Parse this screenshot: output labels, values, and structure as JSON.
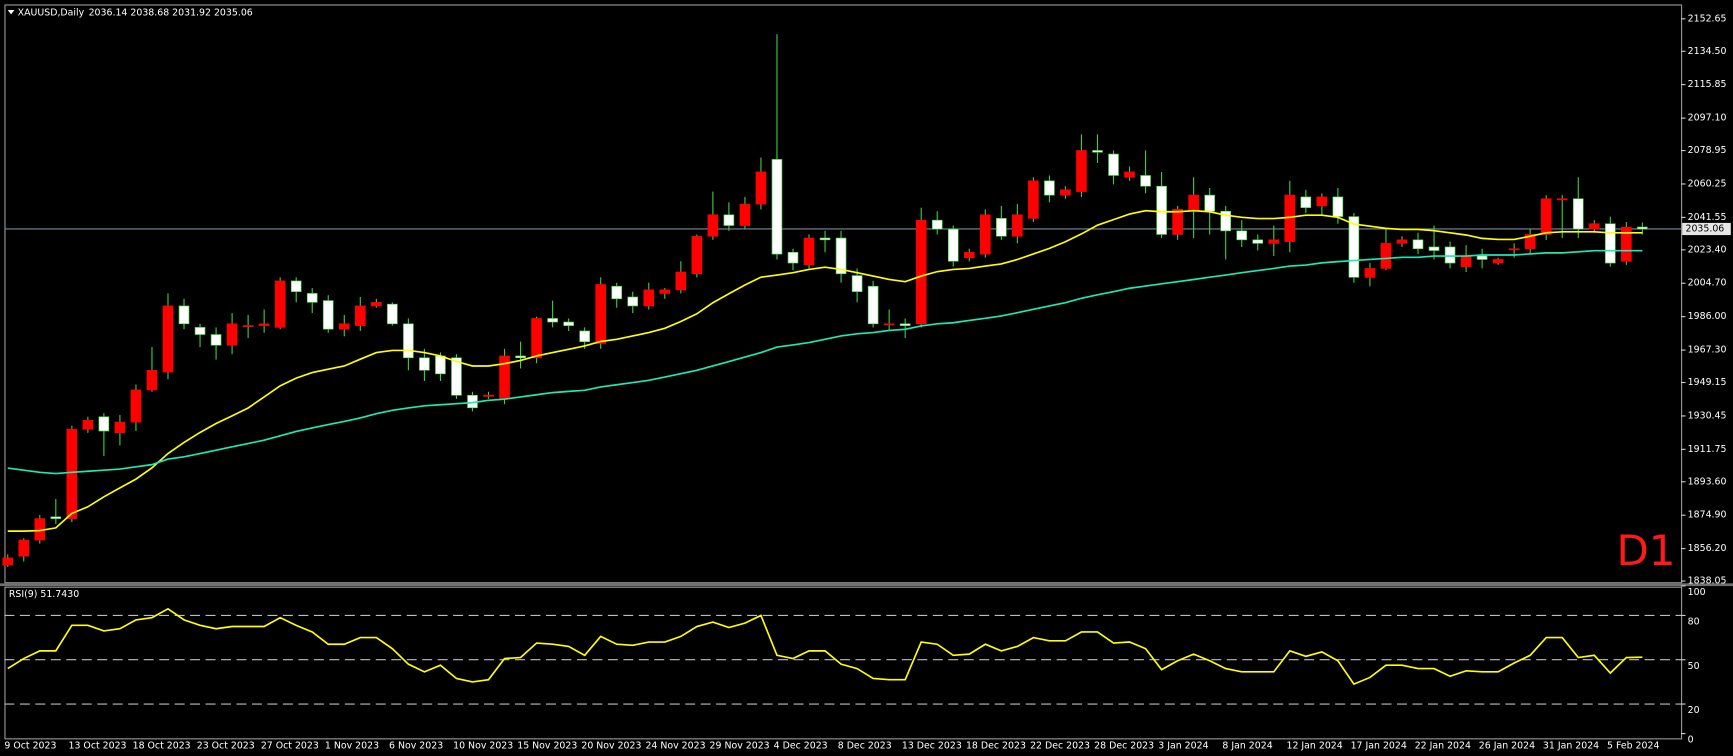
{
  "chart_data": [
    {
      "type": "candlestick",
      "title": "XAUUSD,Daily",
      "subtitle": "2036.14 2038.68 2031.92 2035.06",
      "annotation": "D1",
      "categories": [
        "9 Oct 2023",
        null,
        null,
        null,
        "13 Oct 2023",
        null,
        null,
        null,
        "18 Oct 2023",
        null,
        null,
        null,
        "23 Oct 2023",
        null,
        null,
        null,
        "27 Oct 2023",
        null,
        null,
        null,
        "1 Nov 2023",
        null,
        null,
        null,
        "6 Nov 2023",
        null,
        null,
        null,
        "10 Nov 2023",
        null,
        null,
        null,
        "15 Nov 2023",
        null,
        null,
        null,
        "20 Nov 2023",
        null,
        null,
        null,
        "24 Nov 2023",
        null,
        null,
        null,
        "29 Nov 2023",
        null,
        null,
        null,
        "4 Dec 2023",
        null,
        null,
        null,
        "8 Dec 2023",
        null,
        null,
        null,
        "13 Dec 2023",
        null,
        null,
        null,
        "18 Dec 2023",
        null,
        null,
        null,
        "22 Dec 2023",
        null,
        null,
        null,
        "28 Dec 2023",
        null,
        null,
        null,
        "3 Jan 2024",
        null,
        null,
        null,
        "8 Jan 2024",
        null,
        null,
        null,
        "12 Jan 2024",
        null,
        null,
        null,
        "17 Jan 2024",
        null,
        null,
        null,
        "22 Jan 2024",
        null,
        null,
        null,
        "26 Jan 2024",
        null,
        null,
        null,
        "31 Jan 2024",
        null,
        null,
        null,
        "5 Feb 2024",
        null,
        null
      ],
      "open": [
        1847,
        1852,
        1861,
        1874,
        1873,
        1923,
        1930,
        1921,
        1927,
        1945,
        1955,
        1992,
        1980,
        1976,
        1970,
        1981,
        1981,
        1980,
        2006,
        1999,
        1995,
        1979,
        1981,
        1992,
        1993,
        1982,
        1963,
        1964,
        1963,
        1942,
        1942,
        1940,
        1964,
        1963,
        1985,
        1983,
        1978,
        1971,
        2003,
        1997,
        1992,
        1999,
        2001,
        2010,
        2031,
        2043,
        2037,
        2049,
        2074,
        2022,
        2015,
        2030,
        2030,
        2009,
        2003,
        1982,
        1982,
        1982,
        2040,
        2035,
        2019,
        2021,
        2041,
        2031,
        2041,
        2062,
        2054,
        2056,
        2079,
        2077,
        2064,
        2065,
        2059,
        2032,
        2045,
        2054,
        2045,
        2034,
        2029,
        2027,
        2028,
        2053,
        2048,
        2053,
        2042,
        2008,
        2013,
        2027,
        2029,
        2025,
        2025,
        2014,
        2020,
        2016,
        2024,
        2024,
        2032,
        2052,
        2052,
        2035,
        2038,
        2017,
        2036.14
      ],
      "high": [
        1853,
        1862,
        1875,
        1884,
        1925,
        1930,
        1932,
        1931,
        1948,
        1969,
        1999,
        1996,
        1982,
        1980,
        1988,
        1987,
        1990,
        2008,
        2008,
        2002,
        1998,
        1987,
        1997,
        1996,
        1994,
        1985,
        1968,
        1966,
        1965,
        1944,
        1944,
        1968,
        1972,
        1986,
        1995,
        1985,
        1980,
        2008,
        2005,
        2000,
        2005,
        2002,
        2017,
        2032,
        2056,
        2050,
        2053,
        2075,
        2144,
        2024,
        2032,
        2034,
        2034,
        2013,
        2006,
        1990,
        1985,
        2047,
        2045,
        2037,
        2024,
        2046,
        2048,
        2049,
        2064,
        2065,
        2059,
        2088,
        2088,
        2079,
        2070,
        2079,
        2067,
        2048,
        2064,
        2058,
        2048,
        2040,
        2032,
        2037,
        2062,
        2057,
        2055,
        2058,
        2044,
        2016,
        2035,
        2031,
        2033,
        2037,
        2028,
        2026,
        2024,
        2019,
        2027,
        2035,
        2054,
        2054,
        2064,
        2040,
        2042,
        2039,
        2038.68
      ],
      "low": [
        1846,
        1849,
        1859,
        1870,
        1871,
        1921,
        1908,
        1914,
        1922,
        1944,
        1951,
        1979,
        1969,
        1962,
        1965,
        1974,
        1977,
        1979,
        1994,
        1988,
        1977,
        1975,
        1978,
        1991,
        1981,
        1956,
        1950,
        1950,
        1940,
        1933,
        1940,
        1937,
        1957,
        1960,
        1980,
        1978,
        1968,
        1968,
        1991,
        1988,
        1990,
        1996,
        1999,
        2008,
        2029,
        2034,
        2035,
        2046,
        2018,
        2012,
        2013,
        2022,
        2005,
        1994,
        1980,
        1978,
        1974,
        1980,
        2032,
        2014,
        2017,
        2019,
        2029,
        2027,
        2039,
        2050,
        2052,
        2053,
        2072,
        2060,
        2062,
        2055,
        2030,
        2029,
        2030,
        2032,
        2018,
        2025,
        2023,
        2020,
        2022,
        2044,
        2043,
        2038,
        2005,
        2003,
        2012,
        2025,
        2021,
        2018,
        2013,
        2011,
        2013,
        2015,
        2019,
        2021,
        2029,
        2030,
        2030,
        2033,
        2014,
        2015,
        2031.92
      ],
      "close": [
        1851,
        1861,
        1873,
        1873,
        1923,
        1928,
        1922,
        1927,
        1945,
        1956,
        1992,
        1982,
        1976,
        1970,
        1982,
        1981,
        1982,
        2006,
        2000,
        1994,
        1979,
        1982,
        1992,
        1994,
        1982,
        1963,
        1956,
        1954,
        1942,
        1935,
        1942,
        1964,
        1963,
        1985,
        1983,
        1981,
        1972,
        2004,
        1996,
        1992,
        2001,
        2001,
        2011,
        2031,
        2043,
        2037,
        2049,
        2067,
        2021,
        2016,
        2030,
        2029,
        2010,
        2000,
        1982,
        1982,
        1981,
        2040,
        2035,
        2017,
        2022,
        2043,
        2031,
        2043,
        2062,
        2054,
        2057,
        2079,
        2078,
        2065,
        2067,
        2059,
        2032,
        2046,
        2054,
        2045,
        2034,
        2029,
        2027,
        2029,
        2054,
        2047,
        2053,
        2042,
        2008,
        2013,
        2027,
        2029,
        2024,
        2023,
        2016,
        2020,
        2018,
        2018,
        2024,
        2032,
        2052,
        2052,
        2035,
        2038,
        2016,
        2036,
        2035.06
      ],
      "up_color": "#ff0000",
      "down_color": "#ffffff",
      "wick_color": "#3cd23c",
      "series": [
        {
          "color": "#ffff00",
          "values": [
            1866.0,
            1866.0,
            1866.3,
            1867.8,
            1875.9,
            1879.6,
            1885.2,
            1890.2,
            1895.1,
            1901.4,
            1909.4,
            1915.6,
            1921.2,
            1926.2,
            1930.5,
            1934.9,
            1941.1,
            1947.3,
            1951.6,
            1954.7,
            1956.6,
            1958.4,
            1962.2,
            1965.9,
            1967.1,
            1967.1,
            1965.9,
            1964.0,
            1960.9,
            1958.4,
            1958.4,
            1959.7,
            1961.5,
            1964.0,
            1965.9,
            1967.7,
            1969.6,
            1972.1,
            1973.3,
            1975.2,
            1977.1,
            1979.5,
            1983.3,
            1987.6,
            1993.8,
            1998.8,
            2003.7,
            2008.1,
            2009.3,
            2010.6,
            2012.4,
            2013.7,
            2012.4,
            2010.6,
            2008.7,
            2006.8,
            2005.6,
            2008.7,
            2011.2,
            2012.4,
            2013.0,
            2014.3,
            2015.5,
            2018.0,
            2021.1,
            2024.2,
            2027.9,
            2032.3,
            2037.2,
            2040.3,
            2043.4,
            2045.3,
            2044.7,
            2044.7,
            2045.3,
            2044.7,
            2042.8,
            2041.6,
            2040.9,
            2040.9,
            2041.6,
            2042.8,
            2042.8,
            2041.6,
            2037.8,
            2036.6,
            2035.4,
            2034.8,
            2034.8,
            2034.1,
            2032.9,
            2031.7,
            2029.8,
            2029.2,
            2029.2,
            2031.0,
            2032.9,
            2033.5,
            2033.5,
            2033.5,
            2032.9,
            2032.9,
            2032.9
          ]
        },
        {
          "color": "#1de9b6",
          "values": [
            1901.3,
            1900.1,
            1898.9,
            1898.2,
            1898.9,
            1899.5,
            1900.1,
            1900.7,
            1902.0,
            1903.2,
            1906.3,
            1907.6,
            1909.4,
            1911.3,
            1913.2,
            1915.0,
            1916.9,
            1919.3,
            1921.8,
            1923.7,
            1925.6,
            1927.4,
            1929.3,
            1931.7,
            1933.6,
            1934.9,
            1936.1,
            1936.7,
            1937.3,
            1937.9,
            1939.2,
            1939.8,
            1941.1,
            1942.3,
            1943.5,
            1944.2,
            1944.8,
            1946.7,
            1947.9,
            1949.1,
            1950.4,
            1952.2,
            1954.1,
            1956.0,
            1958.4,
            1960.9,
            1963.4,
            1965.9,
            1969.0,
            1970.2,
            1971.5,
            1973.3,
            1975.2,
            1976.4,
            1977.1,
            1978.3,
            1978.9,
            1980.8,
            1982.0,
            1982.6,
            1983.9,
            1985.1,
            1986.4,
            1988.2,
            1990.1,
            1992.0,
            1993.8,
            1996.3,
            1998.2,
            2000.0,
            2001.9,
            2003.1,
            2004.4,
            2005.6,
            2006.8,
            2008.1,
            2009.3,
            2010.6,
            2011.8,
            2013.0,
            2014.3,
            2014.9,
            2016.1,
            2016.8,
            2017.4,
            2018.0,
            2018.6,
            2019.2,
            2019.2,
            2019.9,
            2019.9,
            2019.9,
            2020.5,
            2020.5,
            2020.5,
            2021.1,
            2021.7,
            2021.7,
            2022.3,
            2022.9,
            2022.9,
            2022.9,
            2022.9
          ]
        }
      ],
      "price_line": 2035.06,
      "price_line_color": "#778899",
      "ylim": [
        1837.4,
        2160.1
      ],
      "yticks": [
        2152.65,
        {
          "value": 2134.5,
          "label": "2134.50"
        },
        2115.85,
        {
          "value": 2097.1,
          "label": "2097.10"
        },
        2078.95,
        2060.25,
        2041.55,
        {
          "value": 2023.4,
          "label": "2023.40"
        },
        {
          "value": 2004.7,
          "label": "2004.70"
        },
        {
          "value": 1986,
          "label": "1986.00"
        },
        {
          "value": 1967.3,
          "label": "1967.30"
        },
        1949.15,
        1930.45,
        1911.75,
        {
          "value": 1893.6,
          "label": "1893.60"
        },
        {
          "value": 1874.9,
          "label": "1874.90"
        },
        {
          "value": 1856.2,
          "label": "1856.20"
        },
        1838.05
      ]
    },
    {
      "type": "line",
      "title": "RSI(9) 51.7430",
      "color": "#ffff00",
      "values": [
        44,
        50.8,
        56,
        56,
        73.3,
        73.3,
        69.5,
        71,
        77,
        78.5,
        84.5,
        77,
        73.3,
        71,
        72.5,
        72.5,
        72.5,
        78.5,
        73.3,
        68.8,
        60.5,
        60.5,
        65,
        65,
        57.5,
        47,
        41.8,
        46.3,
        37.3,
        35,
        36.5,
        50.8,
        51.5,
        61.3,
        60.5,
        59,
        53,
        65.8,
        60.5,
        59.8,
        62,
        62,
        65.8,
        72.5,
        75.5,
        71.8,
        74.8,
        80,
        53,
        50.8,
        56,
        56,
        47,
        44,
        37.3,
        36.5,
        36.5,
        62,
        60.5,
        53,
        53.8,
        60.5,
        56,
        59,
        65,
        62.8,
        62.8,
        68.8,
        68.8,
        61.3,
        62,
        57.5,
        43.3,
        49.3,
        53.8,
        49.3,
        44,
        41.8,
        41.8,
        41.8,
        56,
        52.3,
        55.3,
        49.3,
        33.5,
        38,
        46.3,
        46.3,
        44,
        44,
        38.8,
        42.5,
        41.8,
        41.8,
        47.8,
        53,
        65,
        65,
        51.5,
        53,
        41,
        51.5,
        51.743
      ],
      "ylim": [
        -3.2,
        99.5
      ],
      "yticks": [
        0,
        20,
        50,
        80,
        100
      ],
      "levels": [
        20,
        50,
        80
      ]
    }
  ]
}
